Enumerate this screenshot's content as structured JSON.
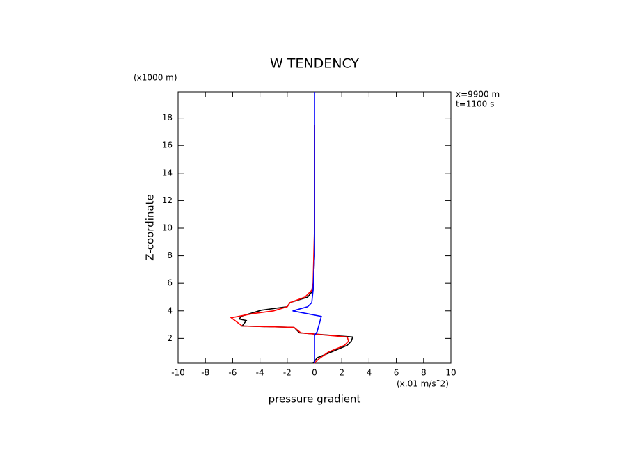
{
  "chart_data": {
    "type": "line",
    "title": "W TENDENCY",
    "y_unit": "(x1000 m)",
    "x_unit": "(x.01 m/s¯2)",
    "x_label": "pressure gradient",
    "y_label": "Z-coordinate",
    "annotations": [
      "x=9900 m",
      "t=1100 s"
    ],
    "xlim": [
      -10,
      10
    ],
    "xticks": [
      -10,
      -8,
      -6,
      -4,
      -2,
      0,
      2,
      4,
      6,
      8,
      10
    ],
    "ylim": [
      0.2,
      19.9
    ],
    "yticks": [
      2,
      4,
      6,
      8,
      10,
      12,
      14,
      16,
      18
    ],
    "series": [
      {
        "color": "#000000",
        "x": [
          -0.1,
          0.2,
          1.2,
          2.4,
          2.7,
          2.8,
          -1.1,
          -1.5,
          -5.3,
          -5.0,
          -5.5,
          -5.4,
          -3.9,
          -2.0,
          -1.8,
          -0.5,
          -0.1,
          0.0,
          0.0,
          0.0
        ],
        "y": [
          0.2,
          0.6,
          1.0,
          1.5,
          1.8,
          2.1,
          2.4,
          2.8,
          2.9,
          3.3,
          3.4,
          3.6,
          4.05,
          4.3,
          4.6,
          5.0,
          5.5,
          8.0,
          14.0,
          17.5
        ]
      },
      {
        "color": "#ff0000",
        "x": [
          0.0,
          0.3,
          1.0,
          2.2,
          2.5,
          2.4,
          -1.0,
          -1.5,
          -5.3,
          -6.1,
          -4.5,
          -3.0,
          -2.0,
          -1.8,
          -0.7,
          -0.2,
          -0.1,
          0.0,
          0.0,
          0.0
        ],
        "y": [
          0.2,
          0.5,
          1.0,
          1.5,
          1.8,
          2.1,
          2.4,
          2.8,
          2.9,
          3.5,
          3.8,
          4.0,
          4.3,
          4.6,
          5.0,
          5.5,
          6.0,
          10.0,
          14.0,
          17.5
        ]
      },
      {
        "color": "#0000ff",
        "x": [
          0.0,
          0.0,
          0.2,
          0.5,
          -1.6,
          -0.5,
          -0.2,
          -0.1,
          0.0,
          0.0
        ],
        "y": [
          0.2,
          2.2,
          2.5,
          3.6,
          4.0,
          4.3,
          4.6,
          5.5,
          8.0,
          19.9
        ]
      }
    ]
  }
}
